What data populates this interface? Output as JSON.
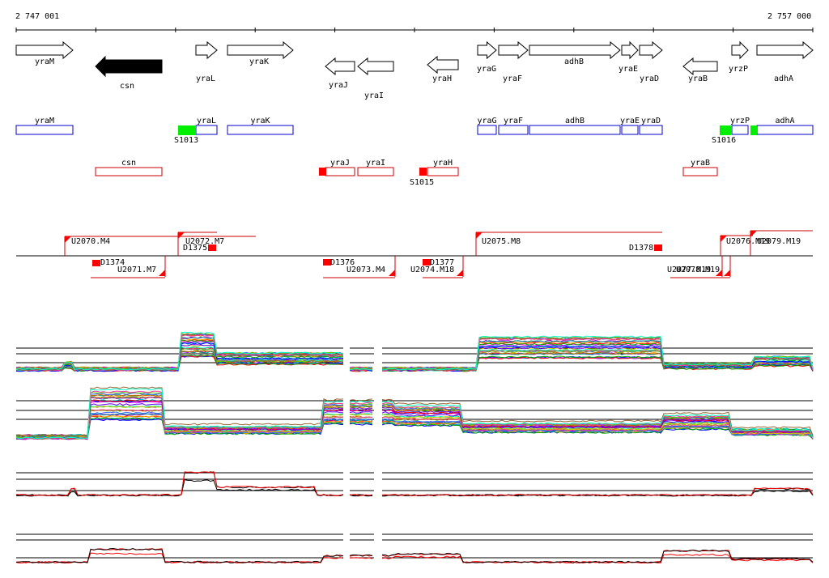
{
  "coords": {
    "start": "2 747 001",
    "end": "2 757 000"
  },
  "genes_top": [
    {
      "name": "yraM",
      "dir": "right"
    },
    {
      "name": "csn",
      "dir": "left",
      "filled": true
    },
    {
      "name": "yraL",
      "dir": "right"
    },
    {
      "name": "yraK",
      "dir": "right"
    },
    {
      "name": "yraJ",
      "dir": "left"
    },
    {
      "name": "yraI",
      "dir": "left"
    },
    {
      "name": "yraH",
      "dir": "left"
    },
    {
      "name": "yraG",
      "dir": "right"
    },
    {
      "name": "yraF",
      "dir": "right"
    },
    {
      "name": "adhB",
      "dir": "right"
    },
    {
      "name": "yraE",
      "dir": "right"
    },
    {
      "name": "yraD",
      "dir": "right"
    },
    {
      "name": "yraB",
      "dir": "left"
    },
    {
      "name": "yrzP",
      "dir": "right"
    },
    {
      "name": "adhA",
      "dir": "right"
    }
  ],
  "genes_plus": [
    "yraM",
    "yraL",
    "yraK",
    "yraG",
    "yraF",
    "adhB",
    "yraE",
    "yraD",
    "yrzP",
    "adhA"
  ],
  "genes_minus": [
    "csn",
    "yraJ",
    "yraI",
    "yraH",
    "yraB"
  ],
  "promoters": [
    "S1013",
    "S1015",
    "S1016"
  ],
  "segments_plus": [
    "U2070.M4",
    "U2072.M7",
    "U2075.M8",
    "U2076.M19",
    "U2079.M19"
  ],
  "segments_minus": [
    "U2071.M7",
    "U2073.M4",
    "U2074.M18",
    "U2077.M19",
    "U2078.M19"
  ],
  "terminators": [
    "D1374",
    "D1375",
    "D1376",
    "D1377",
    "D1378"
  ],
  "colors": {
    "plus_strand": "#0000cc",
    "minus_strand": "#cc0000",
    "promoter": "#00ee00",
    "terminator": "#ff0000",
    "series_mean_a": "#000000",
    "series_mean_b": "#ff0000"
  }
}
